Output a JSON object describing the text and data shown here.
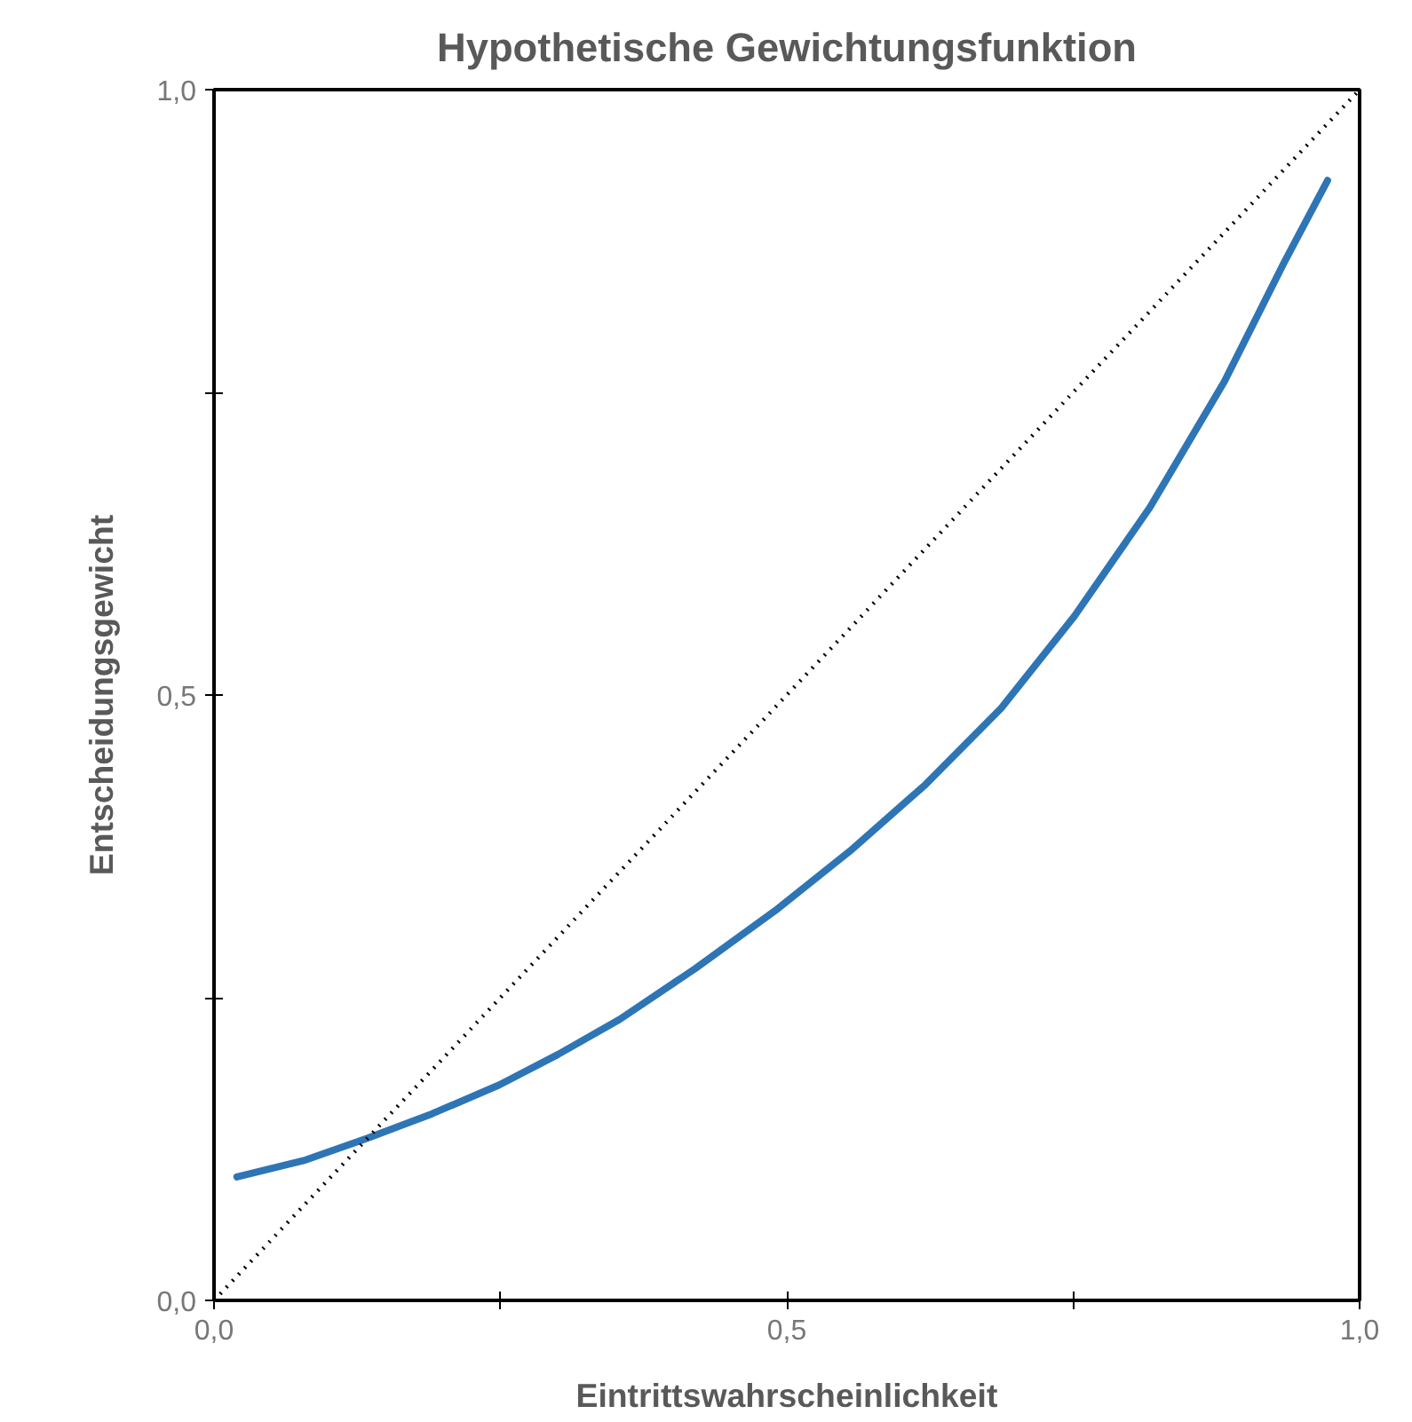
{
  "chart_data": {
    "type": "line",
    "title": "Hypothetische Gewichtungsfunktion",
    "xlabel": "Eintrittswahrscheinlichkeit",
    "ylabel": "Entscheidungsgewicht",
    "series": [
      {
        "color": "#2e75b6",
        "line_style": "solid",
        "x": [
          0.02,
          0.08,
          0.134,
          0.19,
          0.249,
          0.3,
          0.354,
          0.42,
          0.49,
          0.555,
          0.621,
          0.687,
          0.751,
          0.817,
          0.882,
          0.934,
          0.972
        ],
        "values": [
          0.102,
          0.116,
          0.134,
          0.154,
          0.178,
          0.203,
          0.232,
          0.274,
          0.322,
          0.371,
          0.426,
          0.489,
          0.565,
          0.655,
          0.759,
          0.857,
          0.925
        ]
      },
      {
        "color": "#000000",
        "line_style": "dotted",
        "x": [
          0,
          1
        ],
        "values": [
          0,
          1
        ]
      }
    ],
    "xlim": [
      0,
      1
    ],
    "ylim": [
      0,
      1
    ],
    "xticks": [
      {
        "value": 0,
        "label": "0,0"
      },
      {
        "value": 0.25,
        "label": null
      },
      {
        "value": 0.5,
        "label": "0,5"
      },
      {
        "value": 0.75,
        "label": null
      },
      {
        "value": 1,
        "label": "1,0"
      }
    ],
    "yticks": [
      {
        "value": 0,
        "label": "0,0"
      },
      {
        "value": 0.25,
        "label": null
      },
      {
        "value": 0.5,
        "label": "0,5"
      },
      {
        "value": 0.75,
        "label": null
      },
      {
        "value": 1,
        "label": "1,0"
      }
    ],
    "grid": false
  }
}
